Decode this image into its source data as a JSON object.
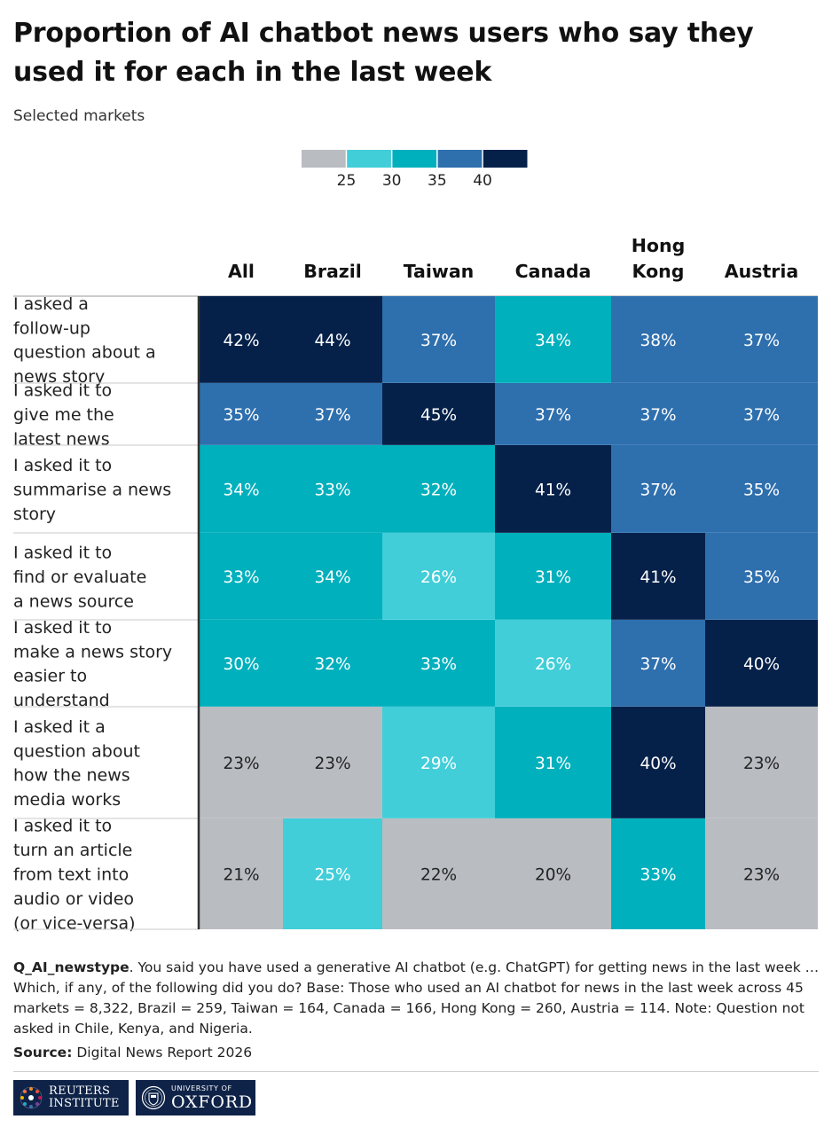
{
  "header": {
    "title": "Proportion of AI chatbot news users who say they used it for each in the last week",
    "subtitle": "Selected markets"
  },
  "legend": {
    "ticks": [
      "25",
      "30",
      "35",
      "40"
    ],
    "bins": [
      {
        "from": null,
        "to": 25,
        "color": "#b9bcc1"
      },
      {
        "from": 25,
        "to": 30,
        "color": "#41ced9"
      },
      {
        "from": 30,
        "to": 35,
        "color": "#00b0bd"
      },
      {
        "from": 35,
        "to": 40,
        "color": "#2e6fae"
      },
      {
        "from": 40,
        "to": null,
        "color": "#05214a"
      }
    ]
  },
  "chart_data": {
    "type": "heatmap",
    "title": "Proportion of AI chatbot news users who say they used it for each in the last week",
    "subtitle": "Selected markets",
    "columns": [
      "All",
      "Brazil",
      "Taiwan",
      "Canada",
      "Hong Kong",
      "Austria"
    ],
    "rows": [
      "I asked a follow-up question about a news story",
      "I asked it to give me the latest news",
      "I asked it to summarise a news story",
      "I asked it to find or evaluate a news source",
      "I asked it to make a news story easier to understand",
      "I asked it a question about how the news media works",
      "I asked it to turn an article from text into audio or video (or vice-versa)"
    ],
    "values": [
      [
        42,
        44,
        37,
        34,
        38,
        37
      ],
      [
        35,
        37,
        45,
        37,
        37,
        37
      ],
      [
        34,
        33,
        32,
        41,
        37,
        35
      ],
      [
        33,
        34,
        26,
        31,
        41,
        35
      ],
      [
        30,
        32,
        33,
        26,
        37,
        40
      ],
      [
        23,
        23,
        29,
        31,
        40,
        23
      ],
      [
        21,
        25,
        22,
        20,
        33,
        23
      ]
    ],
    "value_suffix": "%",
    "color_scale": {
      "type": "binned",
      "thresholds": [
        25,
        30,
        35,
        40
      ],
      "colors": [
        "#b9bcc1",
        "#41ced9",
        "#00b0bd",
        "#2e6fae",
        "#05214a"
      ]
    },
    "note": {
      "label": "Q_AI_newstype",
      "text": ". You said you have used a generative AI chatbot (e.g. ChatGPT) for getting news in the last week … Which, if any, of the following did you do? Base: Those who used an AI chatbot for news in the last week across 45 markets = 8,322, Brazil = 259, Taiwan = 164, Canada = 166, Hong Kong = 260, Austria = 114. Note: Question not asked in Chile, Kenya, and Nigeria."
    },
    "source": {
      "label": "Source:",
      "text": "Digital News Report 2026"
    }
  },
  "logos": {
    "reuters": [
      "REUTERS",
      "INSTITUTE"
    ],
    "oxford_small": "UNIVERSITY OF",
    "oxford_big": "OXFORD"
  }
}
